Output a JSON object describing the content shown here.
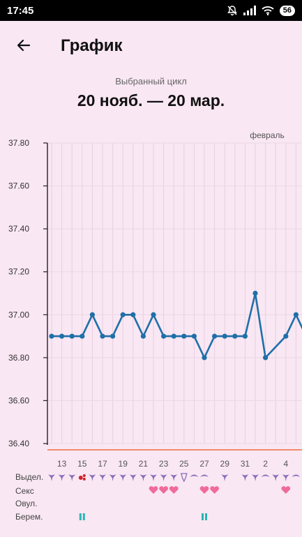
{
  "status_bar": {
    "time": "17:45",
    "battery": "56",
    "icons": [
      "mute-icon",
      "signal-icon",
      "wifi-icon",
      "battery-icon"
    ]
  },
  "header": {
    "title": "График",
    "back_icon": "arrow-left-icon"
  },
  "cycle": {
    "label": "Выбранный цикл",
    "range": "20 нояб. — 20 мар."
  },
  "colors": {
    "background": "#f9e7f3",
    "line": "#1f6fa8",
    "baseline": "#f28a6a",
    "discharge": "#8a6bb8",
    "heart": "#f06a9a",
    "pregnancy": "#2bb5b5",
    "blood": "#d2232a"
  },
  "row_labels": {
    "discharge": "Выдел.",
    "sex": "Секс",
    "ovulation": "Овул.",
    "pregnancy": "Берем."
  },
  "markers": {
    "discharge": [
      "drip",
      "drip",
      "drip",
      "blood",
      "drip",
      "drip",
      "drip",
      "drip",
      "drip",
      "drip",
      "drip",
      "drip",
      "drip",
      "cup",
      "wave",
      "wave",
      "",
      "drip",
      "",
      "drip",
      "drip",
      "wave",
      "drip",
      "drip",
      "wave",
      "wave"
    ],
    "sex": [
      "",
      "",
      "",
      "",
      "",
      "",
      "",
      "",
      "",
      "",
      "heart",
      "heart",
      "heart",
      "",
      "",
      "heart",
      "heart",
      "",
      "",
      "",
      "",
      "",
      "",
      "heart",
      "",
      ""
    ],
    "pregnancy": [
      "",
      "",
      "",
      "pause",
      "",
      "",
      "",
      "",
      "",
      "",
      "",
      "",
      "",
      "",
      "",
      "pause",
      "",
      "",
      "",
      "",
      "",
      "",
      "",
      "",
      "",
      ""
    ]
  },
  "chart_data": {
    "type": "line",
    "title": "",
    "xlabel": "",
    "ylabel": "",
    "month_label": "февраль",
    "ylim": [
      36.4,
      37.8
    ],
    "yticks": [
      "37.80",
      "37.60",
      "37.40",
      "37.20",
      "37.00",
      "36.80",
      "36.60",
      "36.40"
    ],
    "ytick_values": [
      37.8,
      37.6,
      37.4,
      37.2,
      37.0,
      36.8,
      36.6,
      36.4
    ],
    "x_tick_labels": [
      "13",
      "15",
      "17",
      "19",
      "21",
      "23",
      "25",
      "27",
      "29",
      "31",
      "2",
      "4"
    ],
    "x_tick_indices": [
      1,
      3,
      5,
      7,
      9,
      11,
      13,
      15,
      17,
      19,
      21,
      23
    ],
    "grid": true,
    "series": [
      {
        "values": [
          36.9,
          36.9,
          36.9,
          36.9,
          37.0,
          36.9,
          36.9,
          37.0,
          37.0,
          36.9,
          37.0,
          36.9,
          36.9,
          36.9,
          36.9,
          36.8,
          36.9,
          36.9,
          36.9,
          36.9,
          37.1,
          36.8,
          null,
          36.9,
          37.0,
          36.9
        ]
      }
    ]
  }
}
